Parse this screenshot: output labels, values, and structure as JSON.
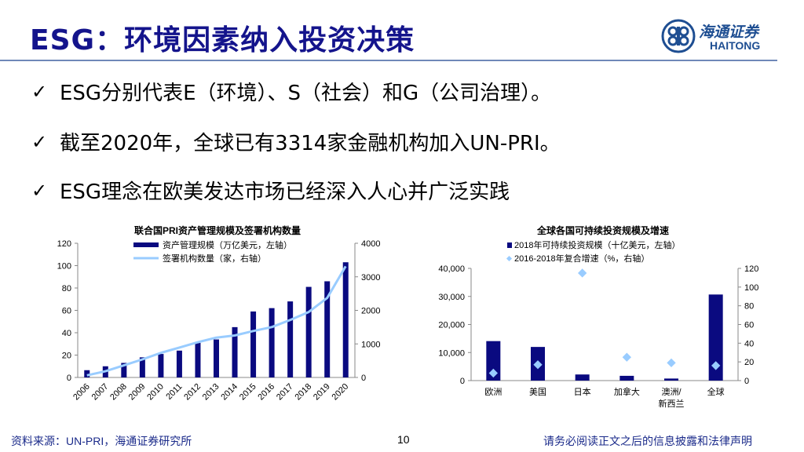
{
  "header": {
    "title": "ESG：环境因素纳入投资决策",
    "logo_cn": "海通证券",
    "logo_en": "HAITONG",
    "accent": "#14148c"
  },
  "bullets": [
    {
      "icon": "check-icon",
      "text": "ESG分别代表E（环境）、S（社会）和G（公司治理）。"
    },
    {
      "icon": "check-icon",
      "text": "截至2020年，全球已有3314家金融机构加入UN-PRI。"
    },
    {
      "icon": "check-icon",
      "text": "ESG理念在欧美发达市场已经深入人心并广泛实践"
    }
  ],
  "chart_data": [
    {
      "type": "bar+line",
      "title": "联合国PRI资产管理规模及签署机构数量",
      "categories": [
        "2006",
        "2007",
        "2008",
        "2009",
        "2010",
        "2011",
        "2012",
        "2013",
        "2014",
        "2015",
        "2016",
        "2017",
        "2018",
        "2019",
        "2020"
      ],
      "series": [
        {
          "name": "资产管理规模（万亿美元，左轴）",
          "type": "bar",
          "axis": "left",
          "color": "#0a0a80",
          "values": [
            6.5,
            10,
            13,
            18,
            21,
            24,
            31,
            34,
            45,
            59,
            62,
            68,
            81,
            86,
            103
          ]
        },
        {
          "name": "签署机构数量（家，右轴）",
          "type": "line",
          "axis": "right",
          "color": "#99ccff",
          "values": [
            63,
            185,
            362,
            538,
            734,
            891,
            1050,
            1188,
            1251,
            1384,
            1501,
            1714,
            1951,
            2370,
            3314
          ]
        }
      ],
      "yleft": {
        "range": [
          0,
          120
        ],
        "ticks": [
          "0",
          "20",
          "40",
          "60",
          "80",
          "100",
          "120"
        ]
      },
      "yright": {
        "range": [
          0,
          4000
        ],
        "ticks": [
          "0",
          "1000",
          "2000",
          "3000",
          "4000"
        ]
      },
      "legend": "top-center"
    },
    {
      "type": "bar+scatter",
      "title": "全球各国可持续投资规模及增速",
      "categories": [
        "欧洲",
        "美国",
        "日本",
        "加拿大",
        "澳洲/",
        "全球"
      ],
      "category_second_line": [
        "",
        "",
        "",
        "",
        "新西兰",
        ""
      ],
      "series": [
        {
          "name": "2018年可持续投资规模（十亿美元，左轴）",
          "type": "bar",
          "axis": "left",
          "color": "#0a0a80",
          "values": [
            14075,
            11995,
            2180,
            1699,
            734,
            30683
          ]
        },
        {
          "name": "2016-2018年复合增速（%，右轴）",
          "type": "scatter",
          "axis": "right",
          "color": "#99ccff",
          "values": [
            8,
            17,
            115,
            25,
            19,
            16
          ]
        }
      ],
      "yleft": {
        "range": [
          0,
          40000
        ],
        "ticks": [
          "0",
          "10,000",
          "20,000",
          "30,000",
          "40,000"
        ]
      },
      "yright": {
        "range": [
          0,
          120
        ],
        "ticks": [
          "0",
          "20",
          "40",
          "60",
          "80",
          "100",
          "120"
        ]
      },
      "legend": "top-center"
    }
  ],
  "footer": {
    "source": "资料来源：UN-PRI，海通证券研究所",
    "page": "10",
    "disclaimer": "请务必阅读正文之后的信息披露和法律声明"
  }
}
